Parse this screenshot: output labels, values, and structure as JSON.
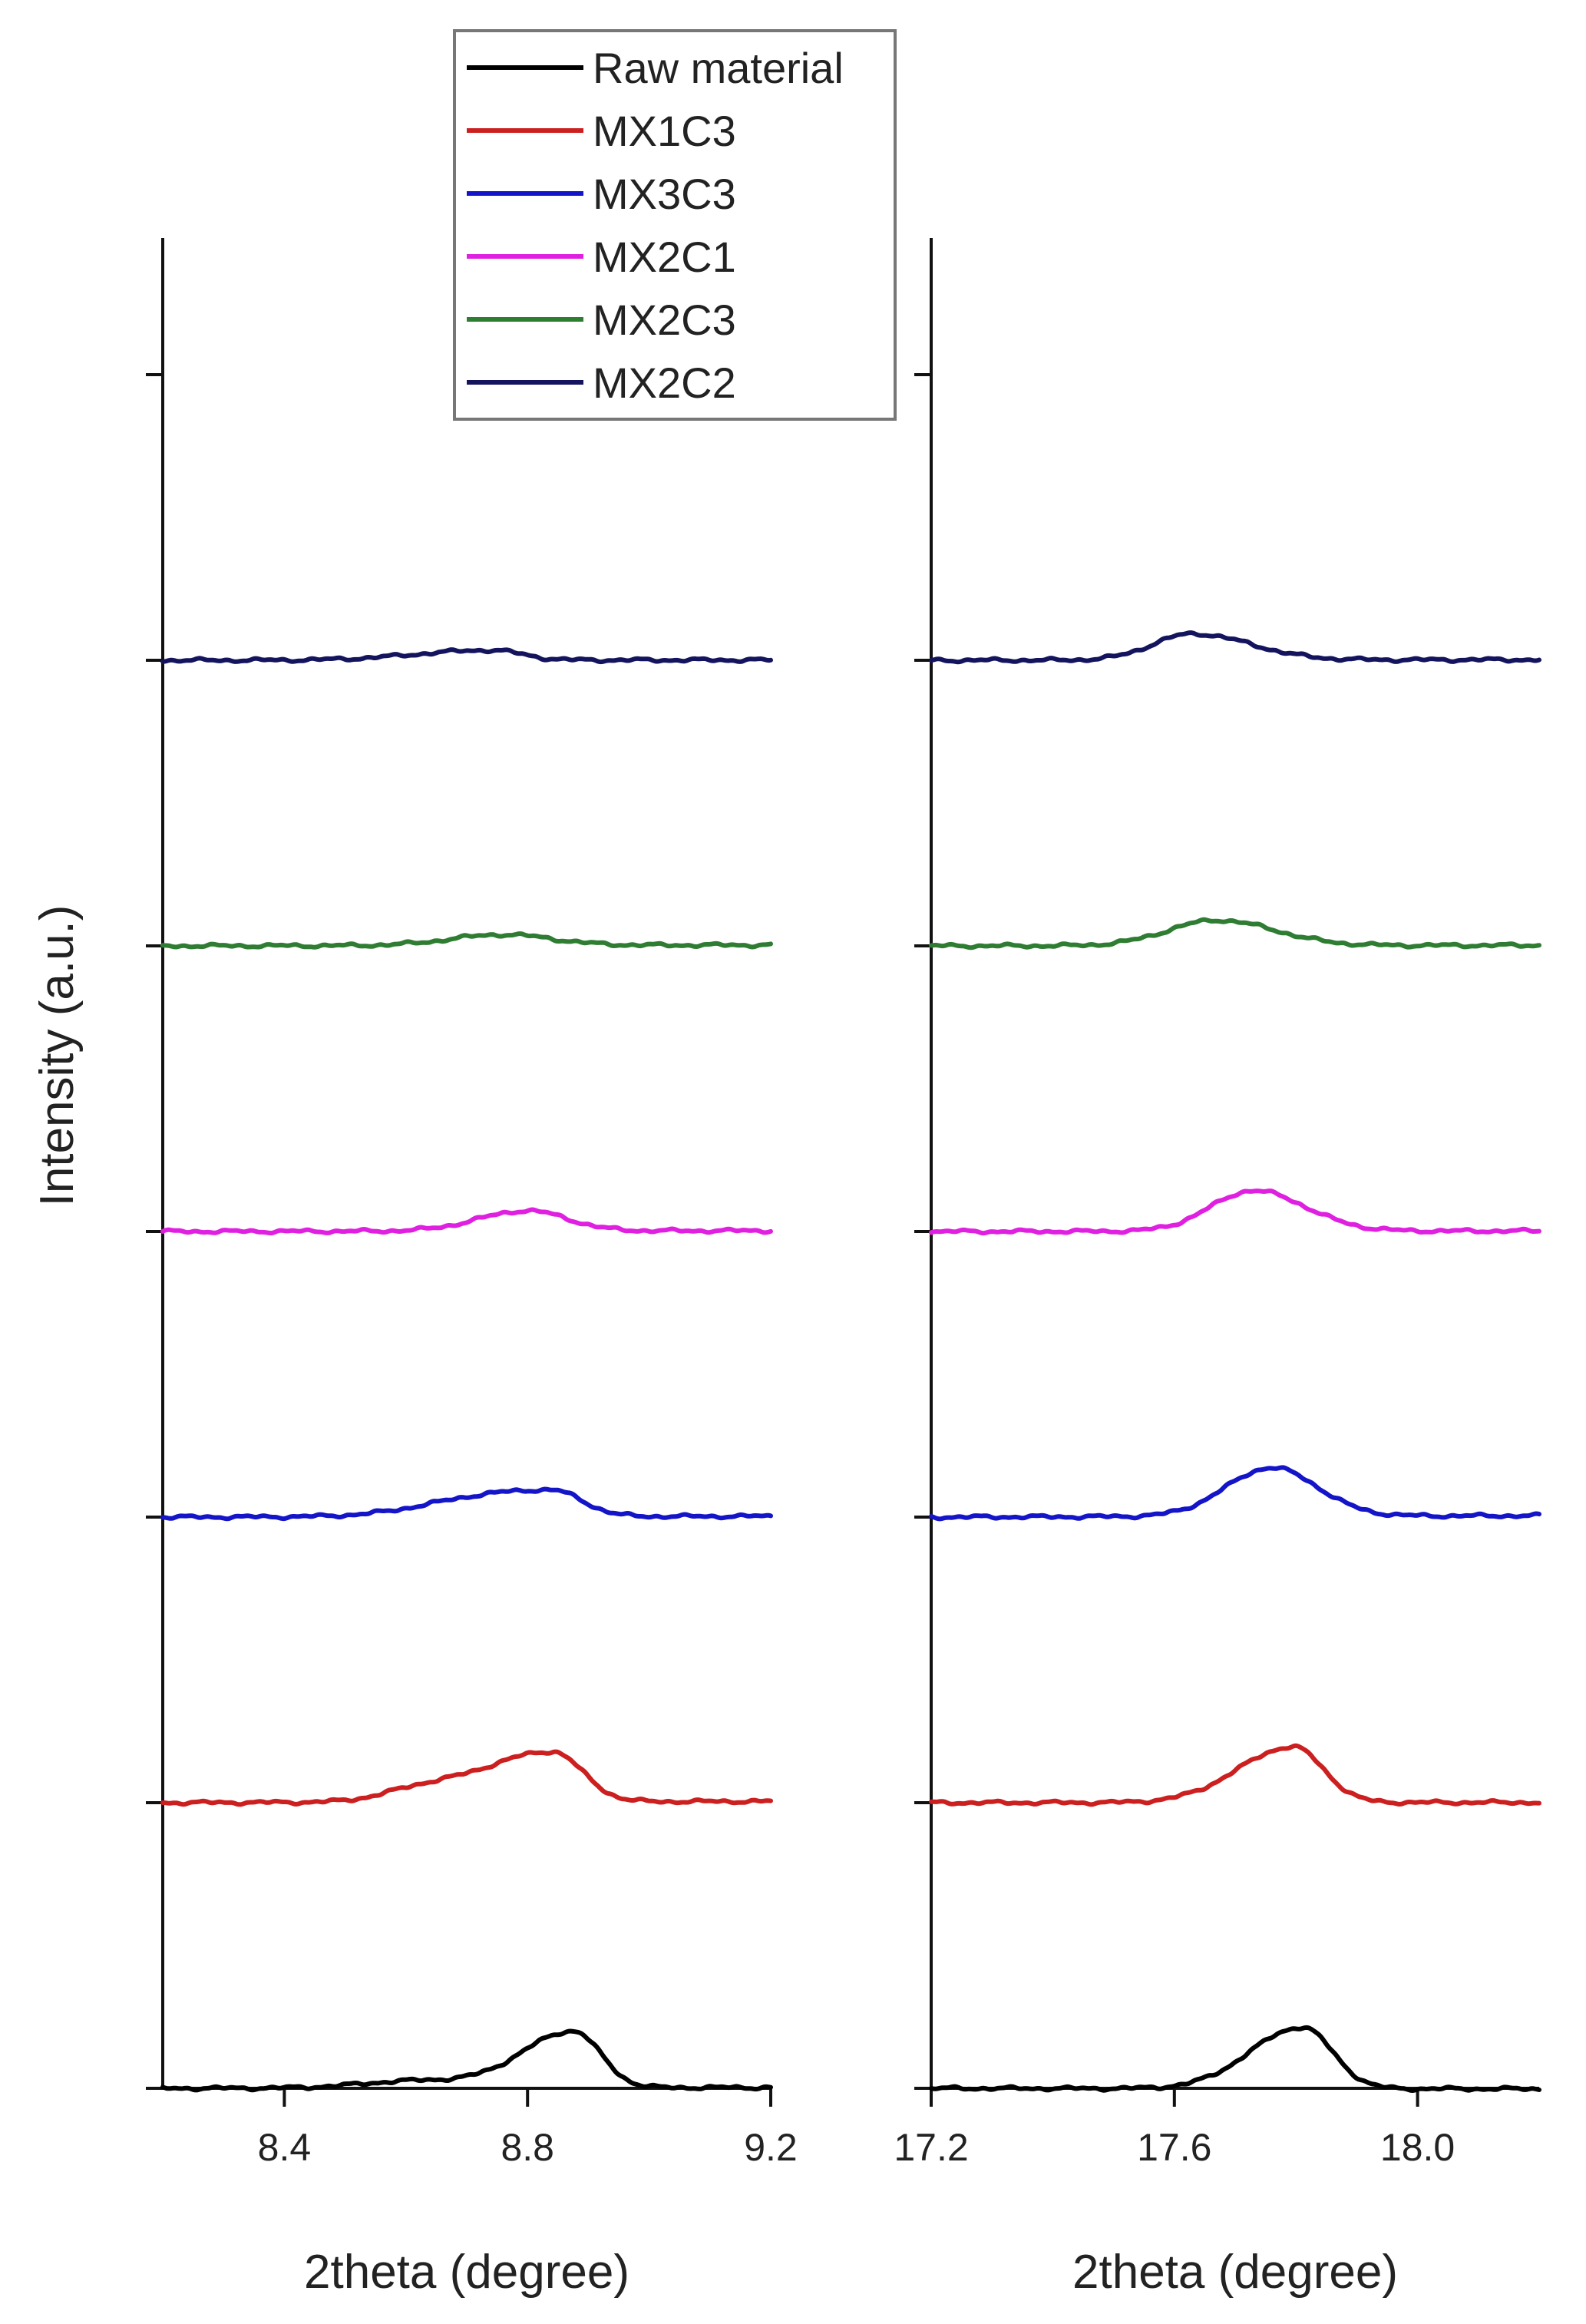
{
  "chart_data": {
    "type": "line",
    "ylabel": "Intensity (a.u.)",
    "y_ticks_shown": 7,
    "legend": {
      "placement": "top",
      "entries": [
        {
          "label": "Raw material",
          "color": "#000000"
        },
        {
          "label": "MX1C3",
          "color": "#cc1f1f"
        },
        {
          "label": "MX3C3",
          "color": "#1414c8"
        },
        {
          "label": "MX2C1",
          "color": "#e020e0"
        },
        {
          "label": "MX2C3",
          "color": "#2e7d32"
        },
        {
          "label": "MX2C2",
          "color": "#14145e"
        }
      ]
    },
    "panels": [
      {
        "xlabel": "2theta (degree)",
        "xlim": [
          8.2,
          9.2
        ],
        "x_ticks": [
          8.4,
          8.8,
          9.2
        ],
        "x_tick_labels": [
          "8.4",
          "8.8",
          "9.2"
        ],
        "series": [
          {
            "name": "Raw material",
            "baseline": 0.0,
            "base_end": 0.003,
            "center": 8.875,
            "amp": 0.198,
            "w_left": 0.085,
            "w_right": 0.045,
            "shoulders": [
              [
                8.62,
                0.025,
                0.09
              ]
            ]
          },
          {
            "name": "MX1C3",
            "baseline": 1.0,
            "base_end": 0.005,
            "center": 8.84,
            "amp": 0.176,
            "w_left": 0.12,
            "w_right": 0.05,
            "shoulders": [
              [
                8.62,
                0.03,
                0.06
              ]
            ]
          },
          {
            "name": "MX3C3",
            "baseline": 2.0,
            "base_end": 0.003,
            "center": 8.84,
            "amp": 0.091,
            "w_left": 0.14,
            "w_right": 0.05,
            "shoulders": [
              [
                8.68,
                0.015,
                0.08
              ]
            ]
          },
          {
            "name": "MX2C1",
            "baseline": 3.0,
            "base_end": 0.003,
            "center": 8.8,
            "amp": 0.071,
            "w_left": 0.08,
            "w_right": 0.065,
            "shoulders": []
          },
          {
            "name": "MX2C3",
            "baseline": 4.0,
            "base_end": 0.003,
            "center": 8.76,
            "amp": 0.038,
            "w_left": 0.085,
            "w_right": 0.08,
            "shoulders": []
          },
          {
            "name": "MX2C2",
            "baseline": 5.0,
            "base_end": 0.001,
            "center": 8.74,
            "amp": 0.035,
            "w_left": 0.12,
            "w_right": 0.05,
            "shoulders": []
          }
        ]
      },
      {
        "xlabel": "2theta (degree)",
        "xlim": [
          17.2,
          18.2
        ],
        "x_ticks": [
          17.2,
          17.6,
          18.0
        ],
        "x_tick_labels": [
          "17.2",
          "17.6",
          "18.0"
        ],
        "series": [
          {
            "name": "Raw material",
            "baseline": 0.0,
            "base_end": -0.002,
            "center": 17.81,
            "amp": 0.215,
            "w_left": 0.085,
            "w_right": 0.05,
            "shoulders": []
          },
          {
            "name": "MX1C3",
            "baseline": 1.0,
            "base_end": 0.001,
            "center": 17.795,
            "amp": 0.195,
            "w_left": 0.09,
            "w_right": 0.05,
            "shoulders": []
          },
          {
            "name": "MX3C3",
            "baseline": 2.0,
            "base_end": 0.005,
            "center": 17.76,
            "amp": 0.17,
            "w_left": 0.075,
            "w_right": 0.075,
            "shoulders": []
          },
          {
            "name": "MX2C1",
            "baseline": 3.0,
            "base_end": 0.002,
            "center": 17.73,
            "amp": 0.142,
            "w_left": 0.07,
            "w_right": 0.085,
            "shoulders": []
          },
          {
            "name": "MX2C3",
            "baseline": 4.0,
            "base_end": 0.002,
            "center": 17.67,
            "amp": 0.089,
            "w_left": 0.08,
            "w_right": 0.095,
            "shoulders": []
          },
          {
            "name": "MX2C2",
            "baseline": 5.0,
            "base_end": 0.002,
            "center": 17.63,
            "amp": 0.092,
            "w_left": 0.065,
            "w_right": 0.095,
            "shoulders": []
          }
        ]
      }
    ]
  }
}
